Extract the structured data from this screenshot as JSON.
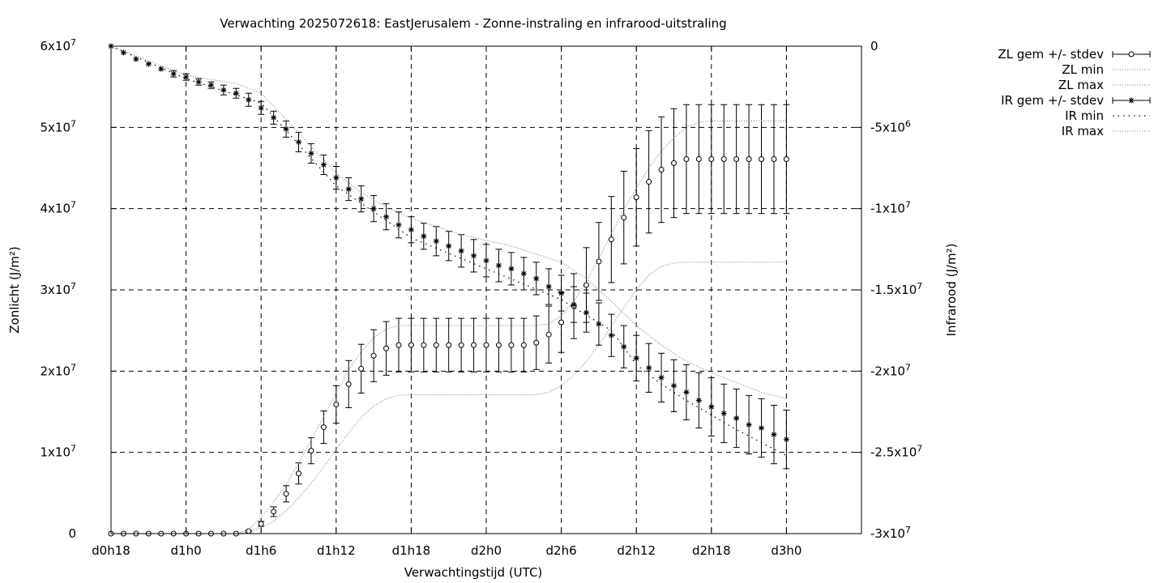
{
  "chart_data": {
    "type": "line",
    "title": "Verwachting 2025072618: EastJerusalem - Zonne-instraling en infrarood-uitstraling",
    "xlabel": "Verwachtingstijd (UTC)",
    "ylabel": "Zonlicht (J/m²)",
    "y2label": "Infrarood (J/m²)",
    "xlim": [
      18,
      78
    ],
    "ylim": [
      0,
      60000000
    ],
    "y2lim": [
      -30000000,
      0
    ],
    "x_ticks": [
      {
        "x": 18,
        "label": "d0h18"
      },
      {
        "x": 24,
        "label": "d1h0"
      },
      {
        "x": 30,
        "label": "d1h6"
      },
      {
        "x": 36,
        "label": "d1h12"
      },
      {
        "x": 42,
        "label": "d1h18"
      },
      {
        "x": 48,
        "label": "d2h0"
      },
      {
        "x": 54,
        "label": "d2h6"
      },
      {
        "x": 60,
        "label": "d2h12"
      },
      {
        "x": 66,
        "label": "d2h18"
      },
      {
        "x": 72,
        "label": "d3h0"
      }
    ],
    "y_ticks": [
      {
        "v": 0,
        "base": "0",
        "exp": ""
      },
      {
        "v": 10000000,
        "base": "1x10",
        "exp": "7"
      },
      {
        "v": 20000000,
        "base": "2x10",
        "exp": "7"
      },
      {
        "v": 30000000,
        "base": "3x10",
        "exp": "7"
      },
      {
        "v": 40000000,
        "base": "4x10",
        "exp": "7"
      },
      {
        "v": 50000000,
        "base": "5x10",
        "exp": "7"
      },
      {
        "v": 60000000,
        "base": "6x10",
        "exp": "7"
      }
    ],
    "y2_ticks": [
      {
        "v": 0,
        "base": "0",
        "exp": ""
      },
      {
        "v": -5000000,
        "base": "-5x10",
        "exp": "6"
      },
      {
        "v": -10000000,
        "base": "-1x10",
        "exp": "7"
      },
      {
        "v": -15000000,
        "base": "-1.5x10",
        "exp": "7"
      },
      {
        "v": -20000000,
        "base": "-2x10",
        "exp": "7"
      },
      {
        "v": -25000000,
        "base": "-2.5x10",
        "exp": "7"
      },
      {
        "v": -30000000,
        "base": "-3x10",
        "exp": "7"
      }
    ],
    "legend_position": "outside-top-right",
    "series": [
      {
        "name": "ZL gem +/- stdev",
        "axis": "y",
        "style": "errorbars-circle",
        "x": [
          18,
          19,
          20,
          21,
          22,
          23,
          24,
          25,
          26,
          27,
          28,
          29,
          30,
          31,
          32,
          33,
          34,
          35,
          36,
          37,
          38,
          39,
          40,
          41,
          42,
          43,
          44,
          45,
          46,
          47,
          48,
          49,
          50,
          51,
          52,
          53,
          54,
          55,
          56,
          57,
          58,
          59,
          60,
          61,
          62,
          63,
          64,
          65,
          66,
          67,
          68,
          69,
          70,
          71,
          72
        ],
        "mean": [
          0,
          0,
          0,
          0,
          0,
          0,
          0,
          0,
          0,
          0,
          0,
          300000,
          1200000,
          2700000,
          4900000,
          7400000,
          10200000,
          13100000,
          15900000,
          18400000,
          20300000,
          21900000,
          22800000,
          23200000,
          23200000,
          23200000,
          23200000,
          23200000,
          23200000,
          23200000,
          23200000,
          23200000,
          23200000,
          23200000,
          23500000,
          24500000,
          26000000,
          28000000,
          30600000,
          33500000,
          36200000,
          38900000,
          41400000,
          43300000,
          44800000,
          45600000,
          46100000,
          46100000,
          46100000,
          46100000,
          46100000,
          46100000,
          46100000,
          46100000,
          46100000
        ],
        "stdev": [
          0,
          0,
          0,
          0,
          0,
          0,
          0,
          0,
          0,
          0,
          0,
          100000,
          300000,
          600000,
          1000000,
          1300000,
          1600000,
          2000000,
          2300000,
          2900000,
          3000000,
          3200000,
          3300000,
          3300000,
          3300000,
          3300000,
          3300000,
          3300000,
          3300000,
          3300000,
          3300000,
          3300000,
          3300000,
          3300000,
          3300000,
          3500000,
          3700000,
          4000000,
          4600000,
          4800000,
          5300000,
          5700000,
          6000000,
          6300000,
          6500000,
          6700000,
          6700000,
          6700000,
          6700000,
          6700000,
          6700000,
          6700000,
          6700000,
          6700000,
          6700000
        ]
      },
      {
        "name": "ZL min",
        "axis": "y",
        "style": "dotted",
        "x": [
          18,
          28,
          29,
          30,
          31,
          32,
          33,
          34,
          35,
          36,
          37,
          38,
          39,
          40,
          41,
          42,
          48,
          52,
          53,
          54,
          55,
          56,
          57,
          58,
          59,
          60,
          61,
          62,
          63,
          64,
          65,
          66,
          72
        ],
        "values": [
          0,
          0,
          200000,
          700000,
          1500000,
          2800000,
          4400000,
          6200000,
          8200000,
          10300000,
          12400000,
          14300000,
          15700000,
          16600000,
          17000000,
          17100000,
          17100000,
          17100000,
          17400000,
          18200000,
          19500000,
          21200000,
          23200000,
          25500000,
          27800000,
          30000000,
          31800000,
          32900000,
          33300000,
          33400000,
          33400000,
          33400000,
          33400000
        ]
      },
      {
        "name": "ZL max",
        "axis": "y",
        "style": "dotted",
        "x": [
          18,
          28,
          29,
          30,
          31,
          32,
          33,
          34,
          35,
          36,
          37,
          38,
          39,
          40,
          41,
          42,
          48,
          52,
          53,
          54,
          55,
          56,
          57,
          58,
          59,
          60,
          61,
          62,
          63,
          64,
          65,
          66,
          72
        ],
        "values": [
          0,
          0,
          500000,
          2000000,
          3900000,
          6000000,
          8700000,
          11500000,
          14400000,
          17300000,
          20100000,
          22400000,
          24100000,
          25200000,
          25600000,
          25600000,
          25600000,
          25600000,
          25800000,
          26800000,
          28600000,
          31000000,
          33800000,
          36900000,
          39900000,
          42500000,
          45000000,
          47100000,
          48700000,
          50000000,
          50600000,
          50800000,
          50800000
        ]
      },
      {
        "name": "IR gem +/- stdev",
        "axis": "y2",
        "style": "errorbars-star",
        "x": [
          18,
          19,
          20,
          21,
          22,
          23,
          24,
          25,
          26,
          27,
          28,
          29,
          30,
          31,
          32,
          33,
          34,
          35,
          36,
          37,
          38,
          39,
          40,
          41,
          42,
          43,
          44,
          45,
          46,
          47,
          48,
          49,
          50,
          51,
          52,
          53,
          54,
          55,
          56,
          57,
          58,
          59,
          60,
          61,
          62,
          63,
          64,
          65,
          66,
          67,
          68,
          69,
          70,
          71,
          72
        ],
        "mean": [
          0,
          -400000,
          -800000,
          -1100000,
          -1400000,
          -1700000,
          -1900000,
          -2200000,
          -2400000,
          -2700000,
          -2900000,
          -3300000,
          -3800000,
          -4400000,
          -5100000,
          -5900000,
          -6600000,
          -7300000,
          -8100000,
          -8800000,
          -9400000,
          -10000000,
          -10500000,
          -11000000,
          -11300000,
          -11700000,
          -12000000,
          -12300000,
          -12600000,
          -12900000,
          -13200000,
          -13500000,
          -13700000,
          -14000000,
          -14300000,
          -14800000,
          -15200000,
          -15900000,
          -16400000,
          -17100000,
          -17800000,
          -18500000,
          -19200000,
          -19800000,
          -20400000,
          -20900000,
          -21300000,
          -21800000,
          -22200000,
          -22600000,
          -22900000,
          -23300000,
          -23500000,
          -23900000,
          -24200000
        ],
        "stdev": [
          0,
          0,
          0,
          0,
          0,
          200000,
          200000,
          200000,
          200000,
          300000,
          300000,
          400000,
          400000,
          400000,
          500000,
          600000,
          600000,
          600000,
          700000,
          700000,
          800000,
          800000,
          800000,
          800000,
          800000,
          800000,
          900000,
          900000,
          1000000,
          1000000,
          1000000,
          1000000,
          1000000,
          1000000,
          1000000,
          1100000,
          1100000,
          1100000,
          1200000,
          1300000,
          1300000,
          1300000,
          1400000,
          1500000,
          1500000,
          1600000,
          1700000,
          1700000,
          1800000,
          1800000,
          1800000,
          1800000,
          1800000,
          1800000,
          1800000
        ]
      },
      {
        "name": "IR min",
        "axis": "y2",
        "style": "dotted-dark",
        "x": [
          18,
          24,
          30,
          36,
          42,
          48,
          54,
          58,
          60,
          62,
          64,
          66,
          68,
          70,
          72
        ],
        "values": [
          0,
          -2000000,
          -3500000,
          -8600000,
          -11800000,
          -13700000,
          -15600000,
          -17500000,
          -19600000,
          -20800000,
          -21800000,
          -22700000,
          -23600000,
          -24400000,
          -25200000
        ]
      },
      {
        "name": "IR max",
        "axis": "y2",
        "style": "dotted",
        "x": [
          18,
          24,
          28,
          30,
          32,
          34,
          36,
          38,
          40,
          42,
          46,
          50,
          52,
          54,
          56,
          58,
          60,
          62,
          64,
          66,
          68,
          70,
          72
        ],
        "values": [
          0,
          -1800000,
          -2300000,
          -2900000,
          -4500000,
          -6200000,
          -7800000,
          -9000000,
          -9900000,
          -10600000,
          -11600000,
          -12300000,
          -12800000,
          -13300000,
          -14300000,
          -15700000,
          -17200000,
          -18400000,
          -19400000,
          -20100000,
          -20700000,
          -21300000,
          -21700000
        ]
      }
    ]
  }
}
